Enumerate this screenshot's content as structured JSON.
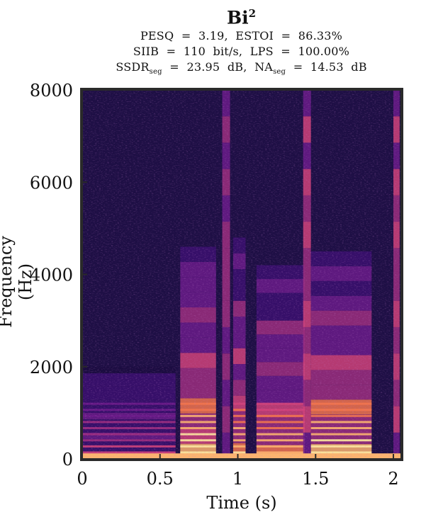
{
  "chart_data": {
    "type": "heatmap",
    "title_main": "Bi",
    "title_sup": "2",
    "metrics": {
      "line1": "PESQ  =  3.19,  ESTOI  =  86.33%",
      "line2": "SIIB  =  110  bit/s,  LPS  =  100.00%",
      "line3": {
        "ssdr_label": "SSDR",
        "ssdr_sub": "seg",
        "ssdr_value": "  =  23.95  dB,  ",
        "na_label": "NA",
        "na_sub": "seg",
        "na_value": "  =  14.53  dB"
      }
    },
    "xlabel": "Time (s)",
    "ylabel": "Frequency (Hz)",
    "xlim": [
      0,
      2.05
    ],
    "ylim": [
      0,
      8000
    ],
    "x_ticks": [
      0,
      0.5,
      1,
      1.5,
      2
    ],
    "x_tick_labels": [
      "0",
      "0.5",
      "1",
      "1.5",
      "2"
    ],
    "y_ticks": [
      0,
      2000,
      4000,
      6000,
      8000
    ],
    "y_tick_labels": [
      "0",
      "2000",
      "4000",
      "6000",
      "8000"
    ],
    "colormap": [
      "#1b0c41",
      "#3b0f70",
      "#6a1b8a",
      "#9c2e7f",
      "#d0427a",
      "#f2744d",
      "#fcb46e",
      "#fde8a0"
    ],
    "background_color": "#1e0f45",
    "frame_color": "#2a2a2a",
    "energy_regions": [
      {
        "t0": 0.0,
        "t1": 0.6,
        "f0": 0,
        "f1": 2000,
        "level": 0.35,
        "kind": "voiced-low"
      },
      {
        "t0": 0.63,
        "t1": 0.86,
        "f0": 0,
        "f1": 4600,
        "level": 0.85,
        "kind": "vowel"
      },
      {
        "t0": 0.9,
        "t1": 0.95,
        "f0": 0,
        "f1": 8000,
        "level": 0.45,
        "kind": "burst"
      },
      {
        "t0": 0.97,
        "t1": 1.05,
        "f0": 0,
        "f1": 4800,
        "level": 0.75,
        "kind": "vowel"
      },
      {
        "t0": 1.12,
        "t1": 1.43,
        "f0": 0,
        "f1": 4200,
        "level": 0.7,
        "kind": "vowel"
      },
      {
        "t0": 1.42,
        "t1": 1.47,
        "f0": 0,
        "f1": 8000,
        "level": 0.55,
        "kind": "burst"
      },
      {
        "t0": 1.47,
        "t1": 1.86,
        "f0": 0,
        "f1": 4500,
        "level": 0.8,
        "kind": "vowel"
      },
      {
        "t0": 2.0,
        "t1": 2.04,
        "f0": 0,
        "f1": 8000,
        "level": 0.55,
        "kind": "edge"
      }
    ]
  }
}
